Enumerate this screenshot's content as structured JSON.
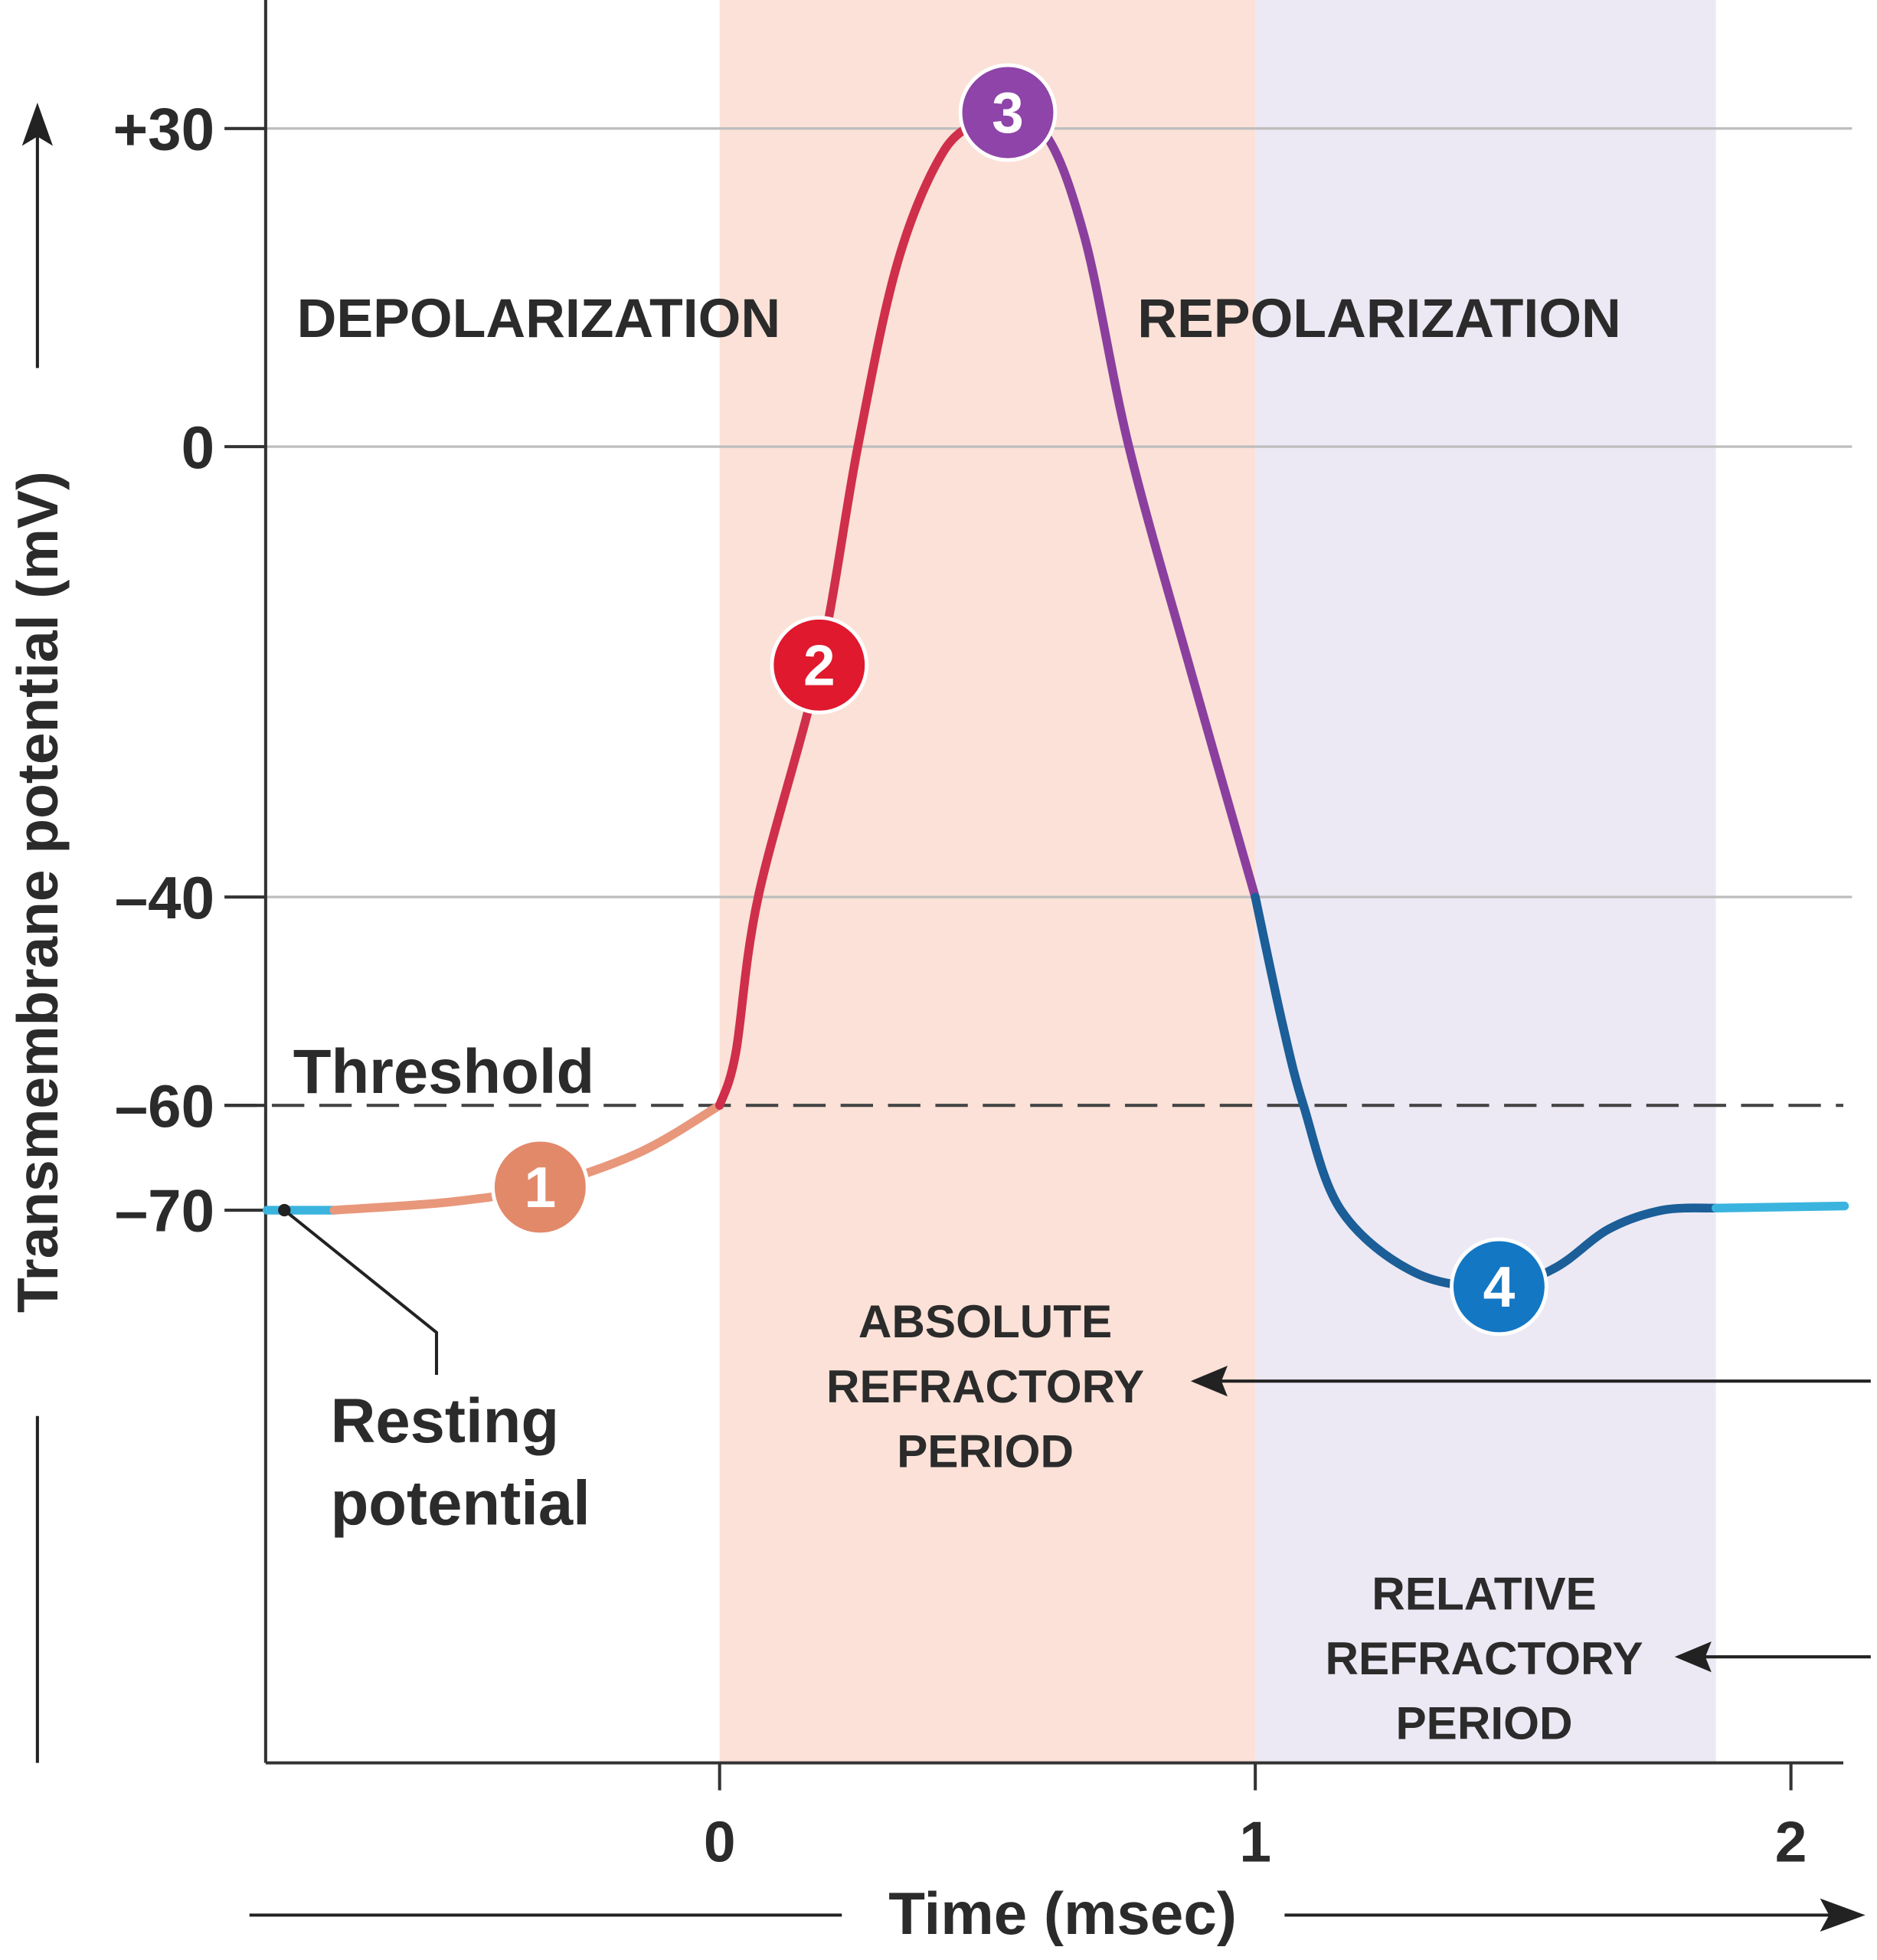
{
  "chart_data": {
    "type": "line",
    "xlabel": "Time (msec)",
    "ylabel": "Transmembrane potential (mV)",
    "x_ticks": [
      0,
      1,
      2
    ],
    "x_tick_labels": [
      "0",
      "1",
      "2"
    ],
    "y_ticks": [
      30,
      0,
      -40,
      -60,
      -70
    ],
    "y_tick_labels": [
      "+30",
      "0",
      "–40",
      "–60",
      "–70"
    ],
    "xlim": [
      -0.85,
      2.1
    ],
    "gridlines_mV": [
      30,
      0,
      -40
    ],
    "threshold": {
      "value": -60,
      "label": "Threshold",
      "style": "dashed"
    },
    "regions": [
      {
        "name": "absolute-refractory",
        "x": [
          0,
          1
        ],
        "color": "#fbe1d7",
        "label": [
          "ABSOLUTE",
          "REFRACTORY",
          "PERIOD"
        ]
      },
      {
        "name": "relative-refractory",
        "x": [
          1,
          1.86
        ],
        "color": "#ece9f4",
        "label": [
          "RELATIVE",
          "REFRACTORY",
          "PERIOD"
        ]
      }
    ],
    "phase_labels": {
      "depolarization": "DEPOLARIZATION",
      "repolarization": "REPOLARIZATION"
    },
    "resting_label": [
      "Resting",
      "potential"
    ],
    "resting_value": -70,
    "series": [
      {
        "phase": "rest",
        "color": "#3ab4de",
        "points": [
          [
            -0.845,
            -70
          ],
          [
            -0.72,
            -70
          ]
        ]
      },
      {
        "phase": "1",
        "color": "#e8977b",
        "points": [
          [
            -0.72,
            -70
          ],
          [
            -0.5,
            -69.2
          ],
          [
            -0.335,
            -67.8
          ],
          [
            -0.15,
            -64.5
          ],
          [
            0,
            -60
          ]
        ]
      },
      {
        "phase": "2",
        "color": "#cf2f4a",
        "points": [
          [
            0,
            -60
          ],
          [
            0.03,
            -55
          ],
          [
            0.072,
            -40
          ],
          [
            0.186,
            -19.4
          ],
          [
            0.258,
            0
          ],
          [
            0.333,
            17.5
          ],
          [
            0.42,
            28
          ],
          [
            0.5,
            31
          ]
        ]
      },
      {
        "phase": "3",
        "color": "#8a3f9e",
        "points": [
          [
            0.5,
            31
          ],
          [
            0.6,
            30
          ],
          [
            0.68,
            20
          ],
          [
            0.764,
            0
          ],
          [
            0.88,
            -20
          ],
          [
            1.0,
            -40
          ]
        ]
      },
      {
        "phase": "4",
        "color": "#1b5e98",
        "points": [
          [
            1.0,
            -40
          ],
          [
            1.05,
            -52
          ],
          [
            1.09,
            -60
          ],
          [
            1.16,
            -70
          ],
          [
            1.3,
            -76
          ],
          [
            1.455,
            -77.3
          ],
          [
            1.56,
            -75.5
          ],
          [
            1.66,
            -71.8
          ],
          [
            1.76,
            -70
          ],
          [
            1.86,
            -69.8
          ]
        ]
      },
      {
        "phase": "rest",
        "color": "#3ab4de",
        "points": [
          [
            1.86,
            -69.8
          ],
          [
            2.1,
            -69.6
          ]
        ]
      }
    ],
    "markers": [
      {
        "label": "1",
        "x": -0.335,
        "y": -67.8,
        "color": "#e2896a"
      },
      {
        "label": "2",
        "x": 0.186,
        "y": -19.4,
        "color": "#e0192e"
      },
      {
        "label": "3",
        "x": 0.538,
        "y": 31.5,
        "color": "#8e44a8"
      },
      {
        "label": "4",
        "x": 1.455,
        "y": -77.3,
        "color": "#1477c4"
      }
    ]
  }
}
